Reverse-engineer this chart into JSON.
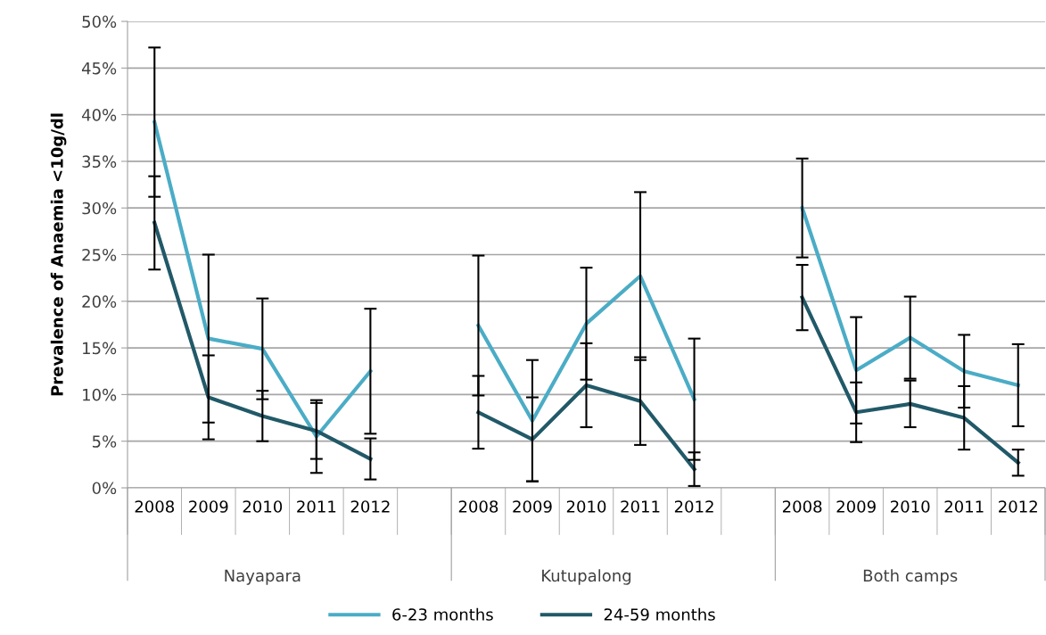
{
  "chart_data": {
    "type": "line",
    "ylabel": "Prevalence of Anaemia <10g/dl",
    "categories": [
      "2008",
      "2009",
      "2010",
      "2011",
      "2012",
      null,
      "2008",
      "2009",
      "2010",
      "2011",
      "2012",
      null,
      "2008",
      "2009",
      "2010",
      "2011",
      "2012"
    ],
    "series": [
      {
        "name": "6-23 months",
        "color": "#4bacc6",
        "values": [
          39.2,
          16.0,
          14.9,
          5.5,
          12.5,
          null,
          17.4,
          7.2,
          17.6,
          22.7,
          9.5,
          null,
          30.0,
          12.6,
          16.1,
          12.5,
          11.0
        ],
        "errors": [
          8.0,
          9.0,
          5.4,
          3.9,
          6.7,
          null,
          7.5,
          6.5,
          6.0,
          9.0,
          6.5,
          null,
          5.3,
          5.7,
          4.4,
          3.9,
          4.4
        ]
      },
      {
        "name": "24-59 months",
        "color": "#215968",
        "values": [
          28.4,
          9.7,
          7.7,
          6.1,
          3.1,
          null,
          8.1,
          5.2,
          11.0,
          9.3,
          2.0,
          null,
          20.4,
          8.1,
          9.0,
          7.5,
          2.7
        ],
        "errors": [
          5.0,
          4.5,
          2.7,
          3.0,
          2.2,
          null,
          3.9,
          4.5,
          4.5,
          4.7,
          1.8,
          null,
          3.5,
          3.2,
          2.5,
          3.4,
          1.4
        ]
      }
    ],
    "ylim": [
      0,
      50
    ],
    "yticks": [
      {
        "value": 0,
        "label": "0%"
      },
      {
        "value": 5,
        "label": "5%"
      },
      {
        "value": 10,
        "label": "10%"
      },
      {
        "value": 15,
        "label": "15%"
      },
      {
        "value": 20,
        "label": "20%"
      },
      {
        "value": 25,
        "label": "25%"
      },
      {
        "value": 30,
        "label": "30%"
      },
      {
        "value": 35,
        "label": "35%"
      },
      {
        "value": 40,
        "label": "40%"
      },
      {
        "value": 45,
        "label": "45%"
      },
      {
        "value": 50,
        "label": "50%"
      }
    ],
    "grid": "y",
    "legend": "bottom",
    "marker": "none",
    "line_style": "solid",
    "annotations": [
      "Nayapara",
      "Kutupalong",
      "Both camps"
    ]
  }
}
